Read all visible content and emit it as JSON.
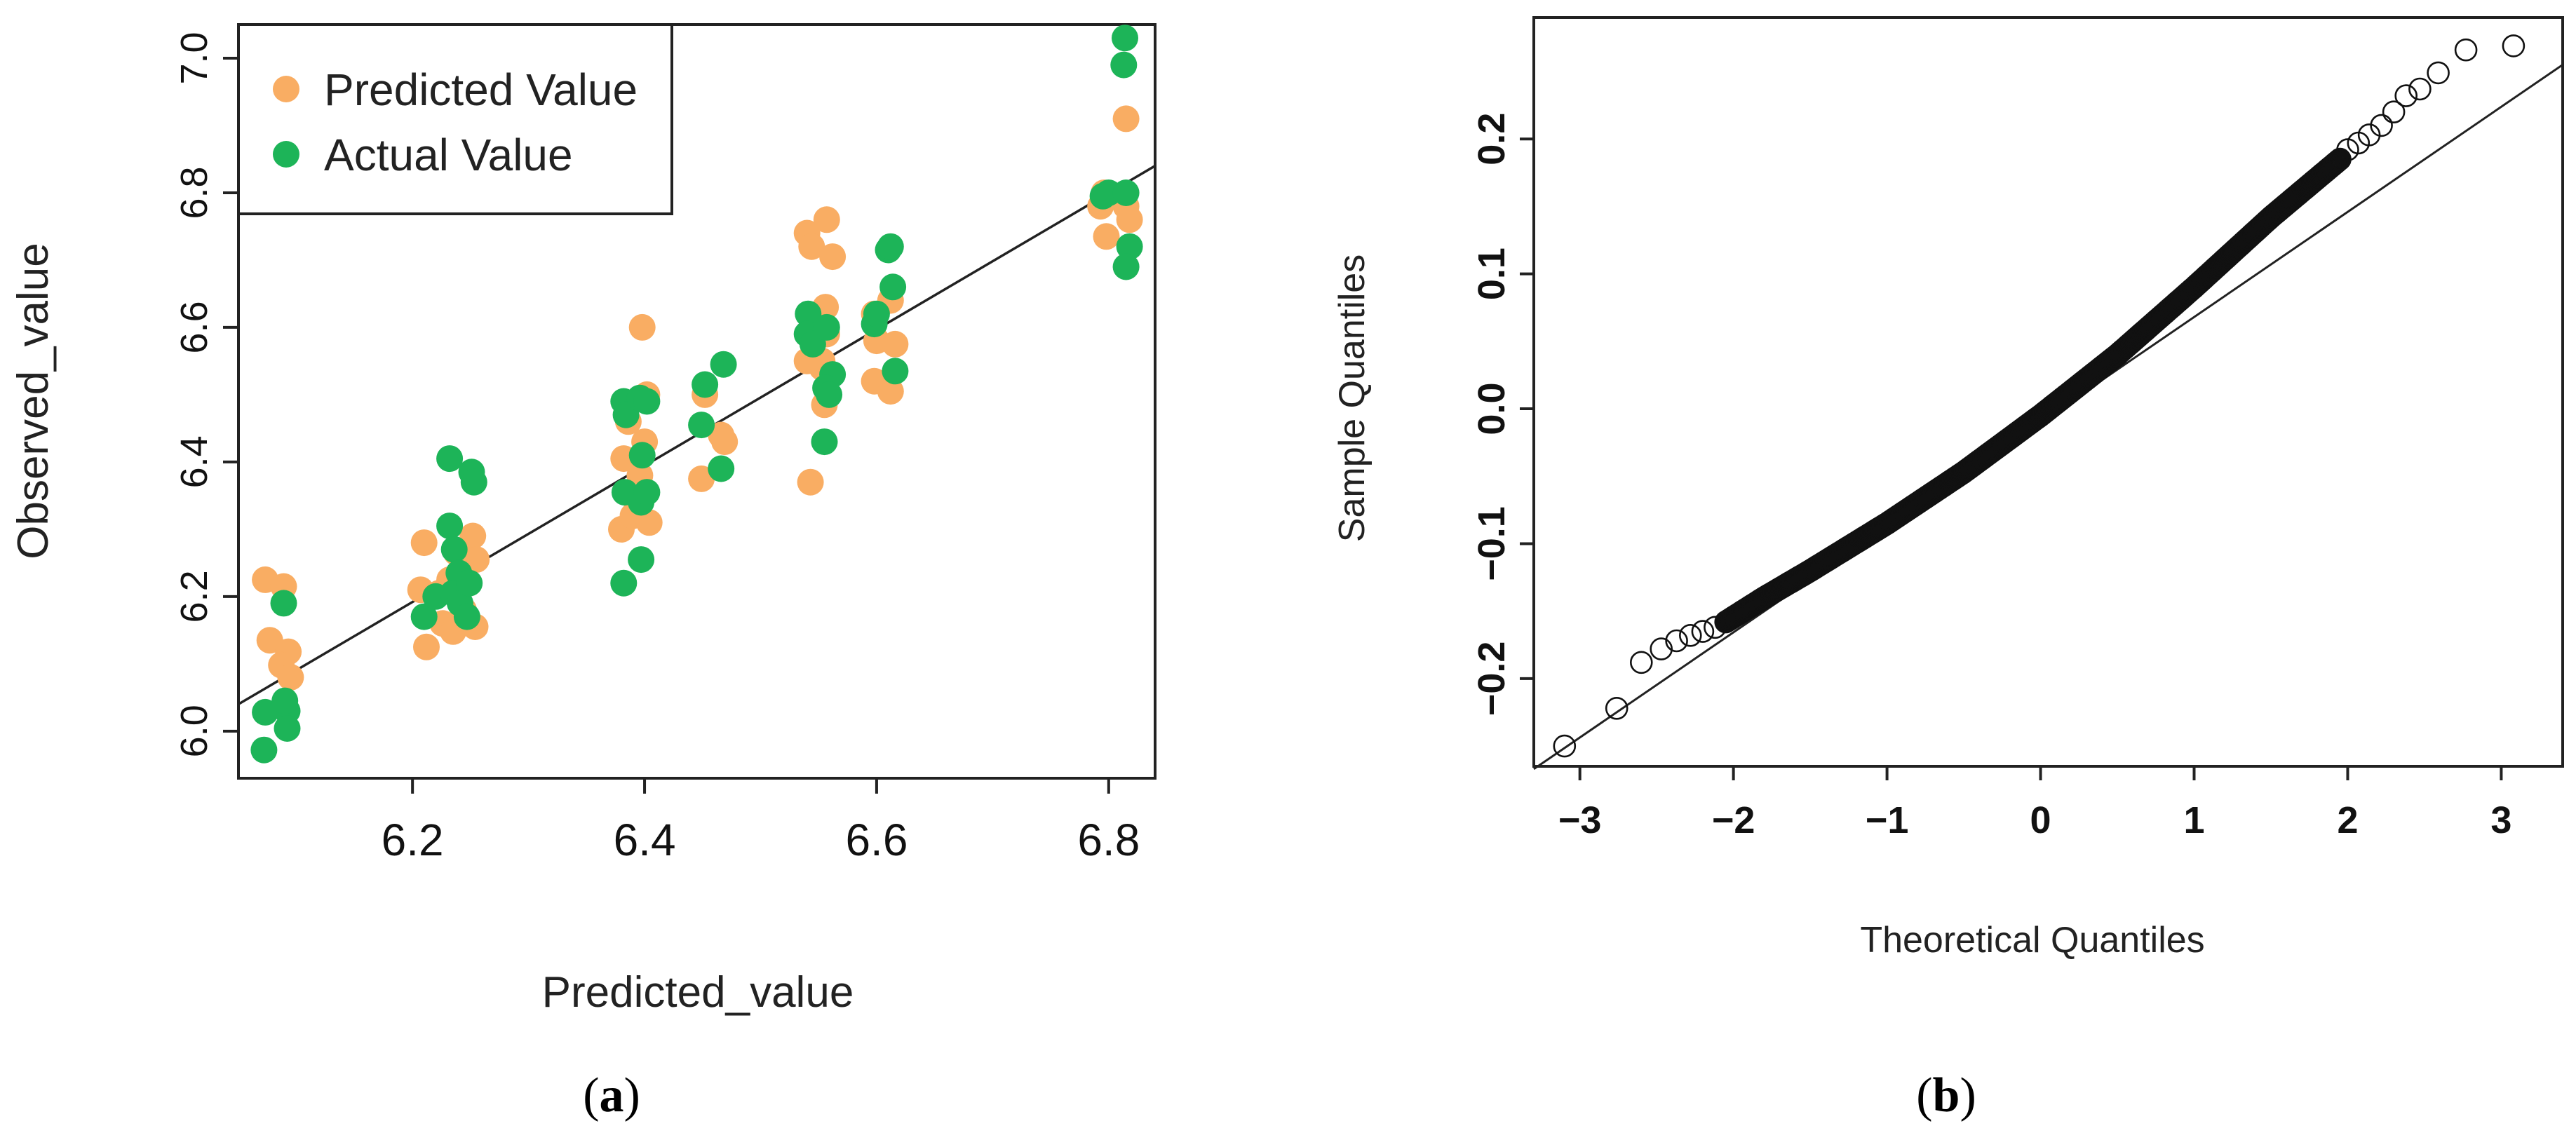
{
  "colors": {
    "predicted": "#F9AD63",
    "actual": "#1DB458",
    "line": "#222222",
    "axis": "#222222"
  },
  "chart_data": [
    {
      "id": "a",
      "type": "scatter",
      "caption_paren_open": "(",
      "caption_letter": "a",
      "caption_paren_close": ")",
      "xlabel": "Predicted_value",
      "ylabel": "Observed_value",
      "xlim": [
        6.05,
        6.84
      ],
      "ylim": [
        5.93,
        7.05
      ],
      "xticks": [
        6.2,
        6.4,
        6.6,
        6.8
      ],
      "xtick_labels": [
        "6.2",
        "6.4",
        "6.6",
        "6.8"
      ],
      "yticks": [
        6.0,
        6.2,
        6.4,
        6.6,
        6.8,
        7.0
      ],
      "ytick_labels": [
        "6.0",
        "6.2",
        "6.4",
        "6.6",
        "6.8",
        "7.0"
      ],
      "legend": {
        "position": "top-left",
        "entries": [
          "Predicted Value",
          "Actual Value"
        ]
      },
      "fit_line": {
        "x": [
          6.05,
          6.84
        ],
        "y": [
          6.04,
          6.84
        ]
      },
      "series": [
        {
          "name": "Predicted Value",
          "color": "#F9AD63",
          "points": [
            [
              6.073,
              6.225
            ],
            [
              6.077,
              6.135
            ],
            [
              6.089,
              6.215
            ],
            [
              6.093,
              6.118
            ],
            [
              6.087,
              6.098
            ],
            [
              6.095,
              6.08
            ],
            [
              6.21,
              6.28
            ],
            [
              6.207,
              6.21
            ],
            [
              6.212,
              6.125
            ],
            [
              6.223,
              6.205
            ],
            [
              6.232,
              6.225
            ],
            [
              6.226,
              6.16
            ],
            [
              6.244,
              6.18
            ],
            [
              6.238,
              6.265
            ],
            [
              6.252,
              6.29
            ],
            [
              6.255,
              6.255
            ],
            [
              6.254,
              6.155
            ],
            [
              6.235,
              6.148
            ],
            [
              6.382,
              6.405
            ],
            [
              6.38,
              6.3
            ],
            [
              6.39,
              6.32
            ],
            [
              6.386,
              6.46
            ],
            [
              6.398,
              6.6
            ],
            [
              6.402,
              6.5
            ],
            [
              6.4,
              6.43
            ],
            [
              6.396,
              6.38
            ],
            [
              6.404,
              6.31
            ],
            [
              6.452,
              6.5
            ],
            [
              6.449,
              6.375
            ],
            [
              6.466,
              6.44
            ],
            [
              6.469,
              6.43
            ],
            [
              6.54,
              6.74
            ],
            [
              6.544,
              6.72
            ],
            [
              6.54,
              6.55
            ],
            [
              6.543,
              6.37
            ],
            [
              6.553,
              6.54
            ],
            [
              6.557,
              6.76
            ],
            [
              6.562,
              6.705
            ],
            [
              6.556,
              6.63
            ],
            [
              6.557,
              6.59
            ],
            [
              6.553,
              6.55
            ],
            [
              6.555,
              6.485
            ],
            [
              6.598,
              6.62
            ],
            [
              6.6,
              6.58
            ],
            [
              6.598,
              6.52
            ],
            [
              6.612,
              6.64
            ],
            [
              6.616,
              6.575
            ],
            [
              6.612,
              6.505
            ],
            [
              6.796,
              6.8
            ],
            [
              6.793,
              6.78
            ],
            [
              6.798,
              6.735
            ],
            [
              6.815,
              6.91
            ],
            [
              6.815,
              6.78
            ],
            [
              6.818,
              6.76
            ]
          ]
        },
        {
          "name": "Actual Value",
          "color": "#1DB458",
          "points": [
            [
              6.073,
              6.028
            ],
            [
              6.072,
              5.972
            ],
            [
              6.089,
              6.19
            ],
            [
              6.092,
              6.03
            ],
            [
              6.09,
              6.045
            ],
            [
              6.092,
              6.004
            ],
            [
              6.21,
              6.17
            ],
            [
              6.22,
              6.2
            ],
            [
              6.232,
              6.405
            ],
            [
              6.232,
              6.305
            ],
            [
              6.236,
              6.27
            ],
            [
              6.24,
              6.235
            ],
            [
              6.235,
              6.205
            ],
            [
              6.241,
              6.19
            ],
            [
              6.251,
              6.385
            ],
            [
              6.253,
              6.37
            ],
            [
              6.249,
              6.22
            ],
            [
              6.247,
              6.17
            ],
            [
              6.382,
              6.49
            ],
            [
              6.384,
              6.47
            ],
            [
              6.383,
              6.355
            ],
            [
              6.382,
              6.22
            ],
            [
              6.396,
              6.495
            ],
            [
              6.402,
              6.49
            ],
            [
              6.398,
              6.41
            ],
            [
              6.397,
              6.34
            ],
            [
              6.402,
              6.355
            ],
            [
              6.397,
              6.255
            ],
            [
              6.452,
              6.515
            ],
            [
              6.449,
              6.455
            ],
            [
              6.468,
              6.545
            ],
            [
              6.466,
              6.39
            ],
            [
              6.541,
              6.62
            ],
            [
              6.54,
              6.59
            ],
            [
              6.545,
              6.575
            ],
            [
              6.557,
              6.6
            ],
            [
              6.562,
              6.53
            ],
            [
              6.556,
              6.51
            ],
            [
              6.559,
              6.5
            ],
            [
              6.555,
              6.43
            ],
            [
              6.598,
              6.605
            ],
            [
              6.6,
              6.62
            ],
            [
              6.61,
              6.715
            ],
            [
              6.612,
              6.72
            ],
            [
              6.614,
              6.66
            ],
            [
              6.616,
              6.535
            ],
            [
              6.8,
              6.8
            ],
            [
              6.795,
              6.795
            ],
            [
              6.814,
              7.03
            ],
            [
              6.813,
              6.99
            ],
            [
              6.815,
              6.8
            ],
            [
              6.818,
              6.72
            ],
            [
              6.815,
              6.69
            ]
          ]
        }
      ]
    },
    {
      "id": "b",
      "type": "scatter",
      "subtype": "normal-qq",
      "caption_paren_open": "(",
      "caption_letter": "b",
      "caption_paren_close": ")",
      "xlabel": "Theoretical Quantiles",
      "ylabel": "Sample Quantiles",
      "xlim": [
        -3.3,
        3.4
      ],
      "ylim": [
        -0.265,
        0.29
      ],
      "xticks": [
        -3,
        -2,
        -1,
        0,
        1,
        2,
        3
      ],
      "xtick_labels": [
        "−3",
        "−2",
        "−1",
        "0",
        "1",
        "2",
        "3"
      ],
      "yticks": [
        -0.2,
        -0.1,
        0.0,
        0.1,
        0.2
      ],
      "ytick_labels": [
        "−0.2",
        "−0.1",
        "0.0",
        "0.1",
        "0.2"
      ],
      "reference_line": {
        "x": [
          -3.3,
          3.4
        ],
        "y": [
          -0.267,
          0.255
        ]
      },
      "tail_points": [
        [
          -3.1,
          -0.25
        ],
        [
          -2.76,
          -0.222
        ],
        [
          -2.6,
          -0.188
        ],
        [
          -2.47,
          -0.178
        ],
        [
          -2.37,
          -0.172
        ],
        [
          -2.28,
          -0.168
        ],
        [
          -2.2,
          -0.165
        ],
        [
          -2.12,
          -0.162
        ],
        [
          2.0,
          0.192
        ],
        [
          2.07,
          0.197
        ],
        [
          2.14,
          0.203
        ],
        [
          2.22,
          0.21
        ],
        [
          2.3,
          0.22
        ],
        [
          2.38,
          0.232
        ],
        [
          2.47,
          0.237
        ],
        [
          2.59,
          0.249
        ],
        [
          2.77,
          0.266
        ],
        [
          3.08,
          0.269
        ]
      ],
      "body_curve": [
        [
          -2.05,
          -0.158
        ],
        [
          -1.8,
          -0.14
        ],
        [
          -1.5,
          -0.12
        ],
        [
          -1.0,
          -0.085
        ],
        [
          -0.5,
          -0.047
        ],
        [
          0.0,
          -0.005
        ],
        [
          0.5,
          0.04
        ],
        [
          1.0,
          0.09
        ],
        [
          1.5,
          0.142
        ],
        [
          1.95,
          0.185
        ]
      ],
      "body_points_n": 520
    }
  ]
}
